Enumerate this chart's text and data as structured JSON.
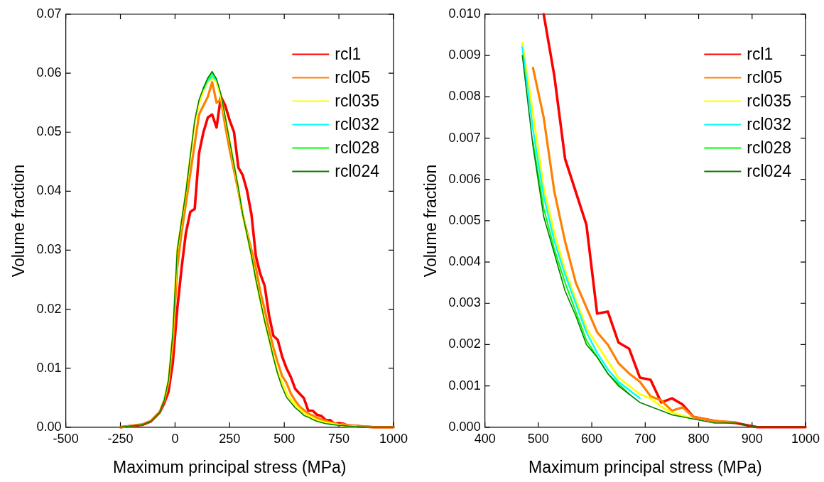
{
  "chart_data": [
    {
      "type": "line",
      "xlabel": "Maximum principal stress (MPa)",
      "ylabel": "Volume fraction",
      "legend": "top right",
      "marker": "none",
      "grid": false,
      "xlim": [
        -500,
        1000
      ],
      "xticks": [
        -500,
        -250,
        0,
        250,
        500,
        750,
        1000
      ],
      "ylim": [
        0,
        0.07
      ],
      "yticks": [
        {
          "value": 0,
          "label": "0.00"
        },
        0.01,
        0.02,
        0.03,
        0.04,
        0.05,
        0.06,
        0.07
      ],
      "x": [
        -250,
        -150,
        -110,
        -70,
        -50,
        -30,
        -10,
        10,
        30,
        50,
        70,
        90,
        110,
        130,
        150,
        170,
        190,
        210,
        230,
        250,
        270,
        290,
        310,
        330,
        350,
        370,
        390,
        410,
        430,
        450,
        470,
        490,
        510,
        530,
        550,
        570,
        590,
        610,
        630,
        650,
        670,
        690,
        710,
        730,
        750,
        770,
        790,
        830,
        870,
        910,
        1000
      ],
      "series": [
        {
          "name": "rcl1",
          "color": "#ff0000",
          "values": [
            0,
            0.0004,
            0.001,
            0.0025,
            0.004,
            0.006,
            0.011,
            0.02,
            0.027,
            0.033,
            0.0365,
            0.037,
            0.0465,
            0.05,
            0.0525,
            0.053,
            0.0508,
            0.056,
            0.0545,
            0.052,
            0.05,
            0.044,
            0.0427,
            0.04,
            0.036,
            0.029,
            0.026,
            0.024,
            0.019,
            0.0155,
            0.0148,
            0.012,
            0.01,
            0.0085,
            0.0065,
            0.0057,
            0.0049,
            0.0028,
            0.0028,
            0.0021,
            0.0019,
            0.0012,
            0.0012,
            0.0006,
            0.0007,
            0.0006,
            0.0003,
            0.0002,
            0.0001,
            0,
            0
          ]
        },
        {
          "name": "rcl05",
          "color": "#ff8000",
          "values": [
            0,
            0.0005,
            0.0011,
            0.0026,
            0.0045,
            0.0075,
            0.014,
            0.027,
            0.033,
            0.038,
            0.043,
            0.048,
            0.053,
            0.0545,
            0.056,
            0.0585,
            0.055,
            0.0555,
            0.051,
            0.047,
            0.0435,
            0.04,
            0.036,
            0.033,
            0.03,
            0.027,
            0.023,
            0.02,
            0.0165,
            0.0135,
            0.011,
            0.0087,
            0.0075,
            0.0057,
            0.0045,
            0.0035,
            0.0029,
            0.0023,
            0.002,
            0.0016,
            0.0013,
            0.0011,
            0.0008,
            0.0007,
            0.0004,
            0.0005,
            0.0003,
            0.0002,
            0.0001,
            0,
            0
          ]
        },
        {
          "name": "rcl035",
          "color": "#ffff00",
          "values": [
            null,
            null,
            null,
            null,
            0.0045,
            0.008,
            0.016,
            0.03,
            0.035,
            0.04,
            0.046,
            0.0515,
            0.055,
            0.057,
            0.0585,
            0.0592,
            0.0585,
            0.056,
            0.0525,
            0.0485,
            0.0445,
            0.0405,
            0.036,
            0.0325,
            0.029,
            0.025,
            0.0215,
            0.018,
            0.015,
            0.012,
            0.0093,
            0.0076,
            0.0058,
            0.0047,
            0.0038,
            0.0031,
            0.0024,
            0.002,
            0.0016,
            0.0012,
            0.001,
            0.0008,
            0.0007,
            0.0005,
            0.0004,
            0.0003,
            0.0002,
            0.0001,
            null,
            null,
            null
          ]
        },
        {
          "name": "rcl032",
          "color": "#00ffff",
          "values": [
            null,
            null,
            null,
            null,
            null,
            null,
            null,
            null,
            null,
            null,
            null,
            null,
            null,
            0.0573,
            0.0588,
            0.0595,
            0.0588,
            null,
            null,
            null,
            null,
            null,
            null,
            null,
            null,
            null,
            null,
            null,
            null,
            null,
            null,
            null,
            null,
            null,
            null,
            null,
            null,
            null,
            null,
            null,
            null,
            null,
            null,
            null,
            null,
            null,
            null,
            null,
            null,
            null,
            null
          ]
        },
        {
          "name": "rcl028",
          "color": "#00ff00",
          "values": [
            null,
            null,
            null,
            null,
            null,
            null,
            null,
            null,
            null,
            null,
            null,
            null,
            null,
            0.0575,
            0.059,
            0.06,
            0.059,
            null,
            null,
            null,
            null,
            null,
            null,
            null,
            null,
            null,
            null,
            null,
            null,
            null,
            null,
            null,
            null,
            null,
            null,
            null,
            null,
            null,
            null,
            null,
            null,
            null,
            null,
            null,
            null,
            null,
            null,
            null,
            null,
            null,
            null
          ]
        },
        {
          "name": "rcl024",
          "color": "#008000",
          "values": [
            0,
            0.0004,
            0.001,
            0.0025,
            0.0045,
            0.008,
            0.016,
            0.03,
            0.035,
            0.04,
            0.046,
            0.052,
            0.0555,
            0.0575,
            0.0592,
            0.0603,
            0.059,
            0.0565,
            0.0525,
            0.0485,
            0.0445,
            0.0405,
            0.036,
            0.0325,
            0.029,
            0.025,
            0.0215,
            0.018,
            0.015,
            0.0118,
            0.009,
            0.0068,
            0.0051,
            0.0042,
            0.0033,
            0.0027,
            0.002,
            0.0017,
            0.0013,
            0.001,
            0.0008,
            0.0006,
            0.0005,
            0.0004,
            0.0003,
            0.0003,
            0.0002,
            0.0001,
            0,
            0,
            0
          ]
        }
      ]
    },
    {
      "type": "line",
      "xlabel": "Maximum principal stress (MPa)",
      "ylabel": "Volume fraction",
      "legend": "top right",
      "marker": "none",
      "grid": false,
      "xlim": [
        400,
        1000
      ],
      "xticks": [
        400,
        500,
        600,
        700,
        800,
        900,
        1000
      ],
      "ylim": [
        0,
        0.01
      ],
      "yticks": [
        {
          "value": 0,
          "label": "0.000"
        },
        {
          "value": 0.001,
          "label": "0.001"
        },
        {
          "value": 0.002,
          "label": "0.002"
        },
        {
          "value": 0.003,
          "label": "0.003"
        },
        {
          "value": 0.004,
          "label": "0.004"
        },
        {
          "value": 0.005,
          "label": "0.005"
        },
        {
          "value": 0.006,
          "label": "0.006"
        },
        {
          "value": 0.007,
          "label": "0.007"
        },
        {
          "value": 0.008,
          "label": "0.008"
        },
        {
          "value": 0.009,
          "label": "0.009"
        },
        {
          "value": 0.01,
          "label": "0.010"
        }
      ],
      "series": [
        {
          "name": "rcl1",
          "color": "#ff0000",
          "x": [
            510,
            530,
            550,
            570,
            590,
            610,
            630,
            650,
            670,
            690,
            710,
            730,
            750,
            770,
            790,
            830,
            870,
            910,
            1000
          ],
          "values": [
            0.01,
            0.0085,
            0.0065,
            0.0057,
            0.0049,
            0.00275,
            0.0028,
            0.00205,
            0.0019,
            0.0012,
            0.00115,
            0.0006,
            0.0007,
            0.00055,
            0.00025,
            0.00015,
            0.0001,
            0,
            0
          ]
        },
        {
          "name": "rcl05",
          "color": "#ff8000",
          "x": [
            490,
            510,
            530,
            550,
            570,
            590,
            610,
            630,
            650,
            670,
            690,
            710,
            730,
            750,
            770,
            790,
            830,
            870
          ],
          "values": [
            0.0087,
            0.0075,
            0.0057,
            0.0045,
            0.0035,
            0.0029,
            0.0023,
            0.002,
            0.00155,
            0.0013,
            0.0011,
            0.00075,
            0.00065,
            0.0004,
            0.00048,
            0.00025,
            0.00015,
            0.00012
          ]
        },
        {
          "name": "rcl035",
          "color": "#ffff00",
          "x": [
            470,
            490,
            510,
            530,
            550,
            570,
            590,
            610,
            630,
            650,
            670,
            690,
            710,
            730,
            750,
            770,
            790
          ],
          "values": [
            0.0093,
            0.0076,
            0.0058,
            0.0047,
            0.0038,
            0.0031,
            0.0024,
            0.002,
            0.0016,
            0.0012,
            0.001,
            0.0008,
            0.0007,
            0.0005,
            0.00035,
            0.00028,
            0.0002
          ]
        },
        {
          "name": "rcl032",
          "color": "#00ffff",
          "x": [
            470,
            490,
            510,
            530,
            550,
            570,
            590,
            610,
            630,
            650,
            670,
            690
          ],
          "values": [
            0.0092,
            0.0072,
            0.0056,
            0.0045,
            0.0037,
            0.003,
            0.0023,
            0.0018,
            0.0014,
            0.0011,
            0.0009,
            0.0007
          ]
        },
        {
          "name": "rcl028",
          "color": "#00ff00",
          "x": [
            490,
            510,
            530,
            550,
            570,
            590,
            610,
            630,
            650,
            670
          ],
          "values": [
            0.0069,
            0.0053,
            0.0043,
            0.0035,
            0.0028,
            0.0021,
            0.0017,
            0.0013,
            0.00105,
            0.0008
          ]
        },
        {
          "name": "rcl024",
          "color": "#008000",
          "x": [
            470,
            490,
            510,
            530,
            550,
            570,
            590,
            610,
            630,
            650,
            670,
            690,
            710,
            730,
            750,
            770,
            790,
            830,
            870,
            910,
            1000
          ],
          "values": [
            0.009,
            0.0068,
            0.0051,
            0.0042,
            0.0033,
            0.0027,
            0.002,
            0.0017,
            0.0013,
            0.001,
            0.0008,
            0.0006,
            0.0005,
            0.0004,
            0.0003,
            0.00025,
            0.0002,
            0.0001,
            0.0001,
            0,
            0
          ]
        }
      ]
    }
  ]
}
